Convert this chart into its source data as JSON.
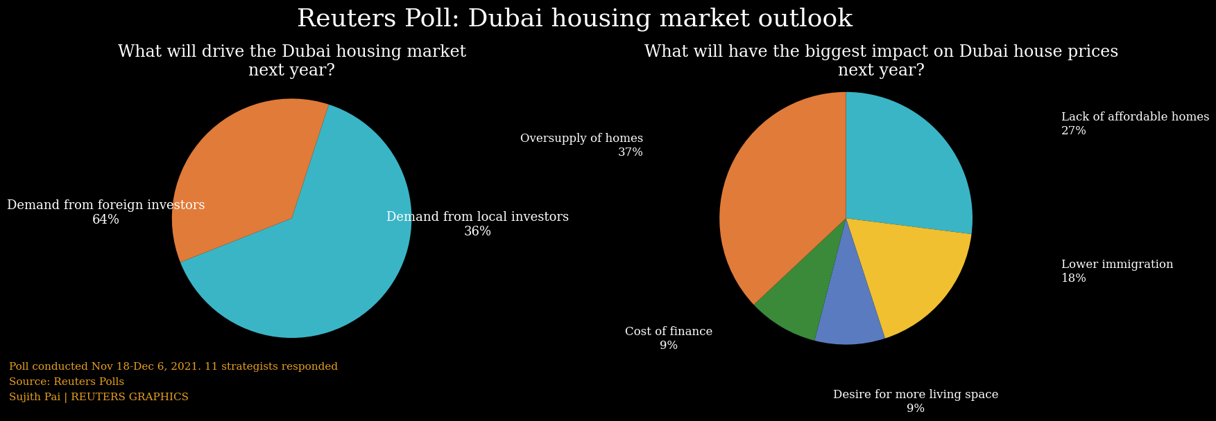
{
  "title": "Reuters Poll: Dubai housing market outlook",
  "title_fontsize": 26,
  "background_color": "#000000",
  "text_color": "#ffffff",
  "subtitle_fontsize": 17,
  "chart1_subtitle": "What will drive the Dubai housing market\nnext year?",
  "chart1_labels_line1": [
    "Demand from foreign investors",
    "Demand from local investors"
  ],
  "chart1_labels_line2": [
    "64%",
    "36%"
  ],
  "chart1_values": [
    64,
    36
  ],
  "chart1_colors": [
    "#3ab5c6",
    "#e07b39"
  ],
  "chart1_startangle": 72,
  "chart2_subtitle": "What will have the biggest impact on Dubai house prices\nnext year?",
  "chart2_labels_line1": [
    "Oversupply of homes",
    "Lack of affordable homes",
    "Lower immigration",
    "Desire for more living space",
    "Cost of finance"
  ],
  "chart2_labels_line2": [
    "37%",
    "27%",
    "18%",
    "9%",
    "9%"
  ],
  "chart2_values": [
    37,
    27,
    18,
    9,
    9
  ],
  "chart2_colors": [
    "#e07b39",
    "#3ab5c6",
    "#f0c030",
    "#5a7bbf",
    "#3a8a3a"
  ],
  "chart2_startangle": 90,
  "footnote1": "Poll conducted Nov 18-Dec 6, 2021. 11 strategists responded",
  "footnote2": "Source: Reuters Polls",
  "footnote3": "Sujith Pai | REUTERS GRAPHICS",
  "footnote_color": "#e8a020",
  "footnote_fontsize": 11
}
